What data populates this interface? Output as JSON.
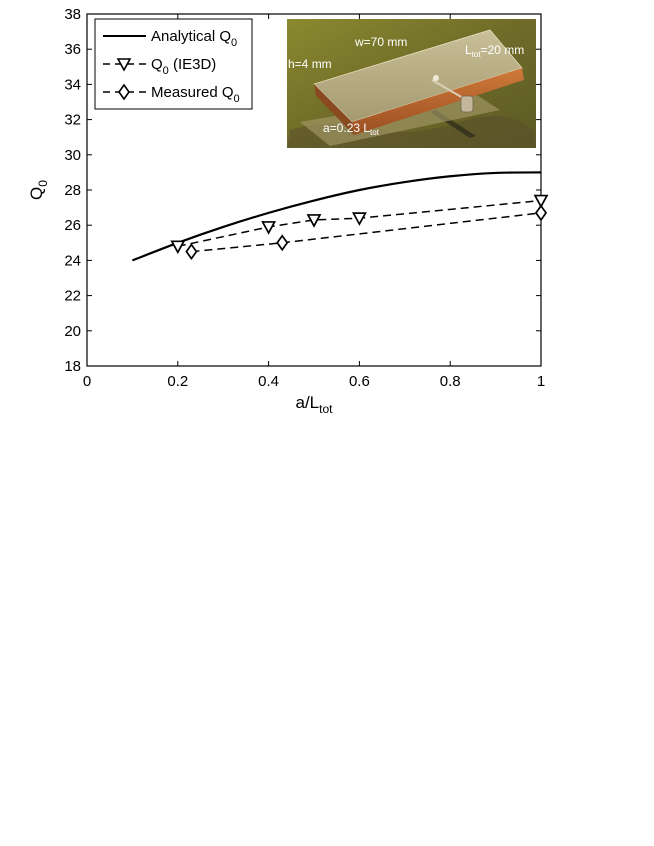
{
  "chart_data": {
    "type": "line",
    "xlabel": "a/L",
    "xlabel_sub": "tot",
    "ylabel": "Q",
    "ylabel_sub": "0",
    "xlim": [
      0,
      1
    ],
    "ylim": [
      18,
      38
    ],
    "xticks": [
      0,
      0.2,
      0.4,
      0.6,
      0.8,
      1
    ],
    "xtick_labels": [
      "0",
      "0.2",
      "0.4",
      "0.6",
      "0.8",
      "1"
    ],
    "yticks": [
      18,
      20,
      22,
      24,
      26,
      28,
      30,
      32,
      34,
      36,
      38
    ],
    "ytick_labels": [
      "18",
      "20",
      "22",
      "24",
      "26",
      "28",
      "30",
      "32",
      "34",
      "36",
      "38"
    ],
    "grid": false,
    "legend_position": "top-left",
    "series": [
      {
        "name": "Analytical Q",
        "name_sub": "0",
        "style": "solid",
        "marker": "none",
        "x": [
          0.1,
          0.2,
          0.3,
          0.4,
          0.5,
          0.6,
          0.7,
          0.8,
          0.9,
          1.0
        ],
        "y": [
          24.0,
          25.0,
          25.9,
          26.7,
          27.4,
          28.0,
          28.45,
          28.78,
          28.97,
          29.0
        ]
      },
      {
        "name": "Q",
        "name_sub": "0",
        "name_suffix": " (IE3D)",
        "style": "dashed",
        "marker": "triangle-down",
        "x": [
          0.2,
          0.4,
          0.5,
          0.6,
          1.0
        ],
        "y": [
          24.8,
          25.9,
          26.3,
          26.4,
          27.4
        ]
      },
      {
        "name": "Measured Q",
        "name_sub": "0",
        "style": "dashed",
        "marker": "diamond",
        "x": [
          0.23,
          0.43,
          1.0
        ],
        "y": [
          24.5,
          25.0,
          26.7
        ]
      }
    ]
  },
  "inset_photo": {
    "label_w": "w=70 mm",
    "label_h": "h=4 mm",
    "label_l": "L",
    "label_l_sub": "tot",
    "label_l_value": "=20 mm",
    "label_a": "a=0.23 L",
    "label_a_sub": "tot",
    "colors": {
      "background": "#7f7a2c",
      "copper": "#b8642e",
      "plate": "#b9ad84"
    }
  }
}
